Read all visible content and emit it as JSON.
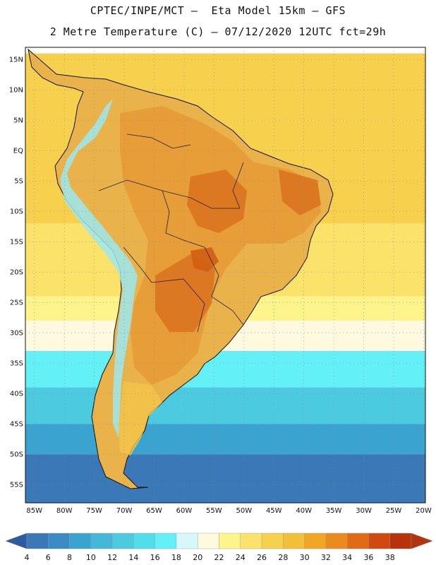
{
  "header": {
    "line1": "CPTEC/INPE/MCT –  Eta Model 15km – GFS",
    "line2": "2 Metre Temperature (C) – 07/12/2020 12UTC fct=29h"
  },
  "map": {
    "lat_labels": [
      "15N",
      "10N",
      "5N",
      "EQ",
      "5S",
      "10S",
      "15S",
      "20S",
      "25S",
      "30S",
      "35S",
      "40S",
      "45S",
      "50S",
      "55S"
    ],
    "lon_labels": [
      "85W",
      "80W",
      "75W",
      "70W",
      "65W",
      "60W",
      "55W",
      "50W",
      "45W",
      "40W",
      "35W",
      "30W",
      "25W",
      "20W"
    ],
    "grid": true,
    "ocean_bands": [
      {
        "lat_from": 16,
        "lat_to": 5,
        "temp": 27
      },
      {
        "lat_from": 5,
        "lat_to": -12,
        "temp": 27
      },
      {
        "lat_from": -12,
        "lat_to": -24,
        "temp": 25
      },
      {
        "lat_from": -24,
        "lat_to": -28,
        "temp": 23
      },
      {
        "lat_from": -28,
        "lat_to": -33,
        "temp": 21
      },
      {
        "lat_from": -33,
        "lat_to": -39,
        "temp": 17
      },
      {
        "lat_from": -39,
        "lat_to": -45,
        "temp": 13
      },
      {
        "lat_from": -45,
        "lat_to": -50,
        "temp": 9
      },
      {
        "lat_from": -50,
        "lat_to": -58,
        "temp": 5
      }
    ]
  },
  "colorbar": {
    "labels": [
      "4",
      "6",
      "8",
      "10",
      "12",
      "14",
      "16",
      "18",
      "20",
      "22",
      "24",
      "26",
      "28",
      "30",
      "32",
      "34",
      "36",
      "38"
    ],
    "colors": [
      "#3b78b8",
      "#3a8cc4",
      "#3aa3cf",
      "#45b8da",
      "#4ccbe0",
      "#4fdeea",
      "#63f1f7",
      "#d6f8fa",
      "#fff9e0",
      "#fdf48c",
      "#fbe26a",
      "#f7d14e",
      "#f3be38",
      "#f1a723",
      "#ec8b1d",
      "#e26a14",
      "#d1490e",
      "#b8330c"
    ],
    "left_arrow_color": "#2d5aa0",
    "right_arrow_color": "#b3330c"
  },
  "land_colors": {
    "andes": "#9be7f0",
    "andes_mid": "#e8c64d",
    "interior": "#e9a33a",
    "hot": "#d9721f"
  }
}
